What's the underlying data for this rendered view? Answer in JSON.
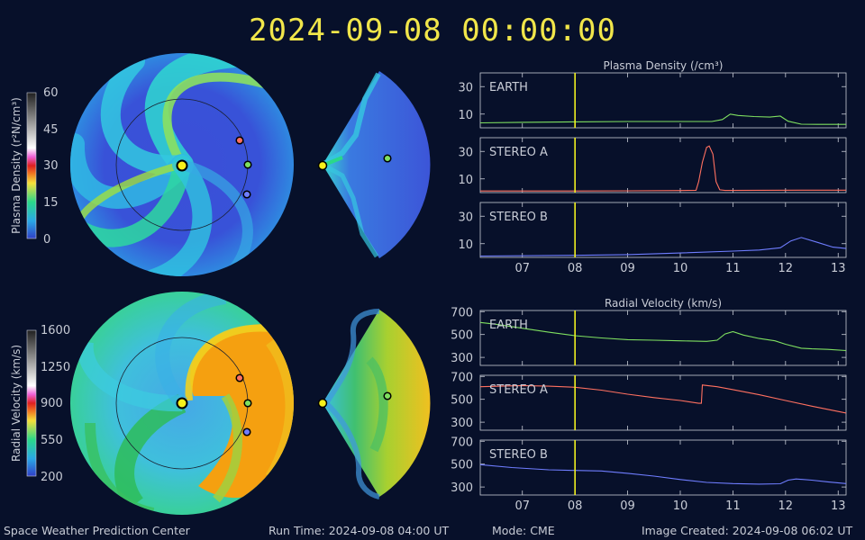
{
  "header": {
    "timestamp": "2024-09-08  00:00:00"
  },
  "footer": {
    "org": "Space Weather Prediction Center",
    "run_time": "Run Time: 2024-09-08 04:00 UT",
    "mode": "Mode: CME",
    "created": "Image Created: 2024-09-08 06:02 UT"
  },
  "colors": {
    "earth": "#7fe060",
    "stereo_a": "#ff7060",
    "stereo_b": "#6f7dff",
    "time_marker": "#f0f020",
    "sun": "#f6f01a",
    "background": "#07102a"
  },
  "maps": {
    "density": {
      "colorbar_label": "Plasma Density (r²N/cm³)",
      "colorbar_ticks": [
        "60",
        "45",
        "30",
        "15",
        "0"
      ]
    },
    "velocity": {
      "colorbar_label": "Radial Velocity (km/s)",
      "colorbar_ticks": [
        "1600",
        "1250",
        "900",
        "550",
        "200"
      ]
    }
  },
  "chart_data": [
    {
      "type": "line",
      "title": "Plasma Density (/cm³)",
      "x_tick_labels": [
        "07",
        "08",
        "09",
        "10",
        "11",
        "12",
        "13"
      ],
      "x_ticks": [
        7,
        8,
        9,
        10,
        11,
        12,
        13
      ],
      "xlim": [
        6.2,
        13.15
      ],
      "current_time": 8.0,
      "panels": [
        {
          "name": "EARTH",
          "color": "#7fe060",
          "yticks": [
            10,
            30
          ],
          "ylim": [
            0,
            40
          ],
          "x": [
            6.2,
            7.0,
            8.0,
            9.0,
            10.0,
            10.6,
            10.8,
            10.95,
            11.1,
            11.4,
            11.7,
            11.9,
            12.05,
            12.3,
            12.6,
            13.15
          ],
          "y": [
            3.6,
            4.0,
            4.3,
            4.6,
            4.6,
            4.6,
            6.0,
            10.0,
            9.0,
            8.2,
            7.8,
            8.5,
            4.8,
            2.6,
            2.5,
            2.5
          ]
        },
        {
          "name": "STEREO A",
          "color": "#ff7060",
          "yticks": [
            10,
            30
          ],
          "ylim": [
            0,
            40
          ],
          "x": [
            6.2,
            8.0,
            9.0,
            10.0,
            10.3,
            10.35,
            10.42,
            10.5,
            10.55,
            10.62,
            10.68,
            10.75,
            10.85,
            11.5,
            12.5,
            13.15
          ],
          "y": [
            1.2,
            1.2,
            1.3,
            1.5,
            1.7,
            8.0,
            22.0,
            33.0,
            34.0,
            28.0,
            8.0,
            2.0,
            1.6,
            1.7,
            1.8,
            1.8
          ]
        },
        {
          "name": "STEREO B",
          "color": "#6f7dff",
          "yticks": [
            10,
            30
          ],
          "ylim": [
            0,
            40
          ],
          "x": [
            6.2,
            8.0,
            9.0,
            10.0,
            11.0,
            11.5,
            11.9,
            12.1,
            12.3,
            12.6,
            12.9,
            13.15
          ],
          "y": [
            1.0,
            1.5,
            2.0,
            3.2,
            4.6,
            5.4,
            7.0,
            12.0,
            14.5,
            11.0,
            7.5,
            6.5
          ]
        }
      ]
    },
    {
      "type": "line",
      "title": "Radial Velocity (km/s)",
      "x_tick_labels": [
        "07",
        "08",
        "09",
        "10",
        "11",
        "12",
        "13"
      ],
      "x_ticks": [
        7,
        8,
        9,
        10,
        11,
        12,
        13
      ],
      "xlim": [
        6.2,
        13.15
      ],
      "current_time": 8.0,
      "panels": [
        {
          "name": "EARTH",
          "color": "#7fe060",
          "yticks": [
            300,
            500,
            700
          ],
          "ylim": [
            230,
            710
          ],
          "x": [
            6.2,
            6.5,
            7.0,
            7.5,
            8.0,
            8.5,
            9.0,
            9.5,
            10.0,
            10.5,
            10.7,
            10.85,
            11.0,
            11.2,
            11.5,
            11.8,
            12.0,
            12.3,
            12.5,
            12.8,
            13.15
          ],
          "y": [
            605,
            590,
            555,
            520,
            490,
            470,
            455,
            450,
            445,
            440,
            450,
            505,
            525,
            495,
            465,
            445,
            415,
            380,
            375,
            370,
            360
          ]
        },
        {
          "name": "STEREO A",
          "color": "#ff7060",
          "yticks": [
            300,
            500,
            700
          ],
          "ylim": [
            230,
            710
          ],
          "x": [
            6.2,
            7.0,
            7.5,
            8.0,
            8.5,
            9.0,
            9.5,
            10.0,
            10.35,
            10.4,
            10.42,
            10.7,
            11.0,
            11.5,
            12.0,
            12.5,
            13.15
          ],
          "y": [
            610,
            620,
            615,
            605,
            580,
            545,
            515,
            490,
            465,
            465,
            625,
            610,
            585,
            540,
            490,
            440,
            380
          ]
        },
        {
          "name": "STEREO B",
          "color": "#6f7dff",
          "yticks": [
            300,
            500,
            700
          ],
          "ylim": [
            230,
            710
          ],
          "x": [
            6.2,
            6.8,
            7.5,
            8.0,
            8.5,
            9.0,
            9.5,
            10.0,
            10.5,
            11.0,
            11.5,
            11.9,
            12.05,
            12.2,
            12.5,
            12.8,
            13.15
          ],
          "y": [
            495,
            470,
            450,
            445,
            440,
            420,
            395,
            365,
            340,
            330,
            325,
            328,
            360,
            370,
            360,
            345,
            330
          ]
        }
      ]
    }
  ]
}
